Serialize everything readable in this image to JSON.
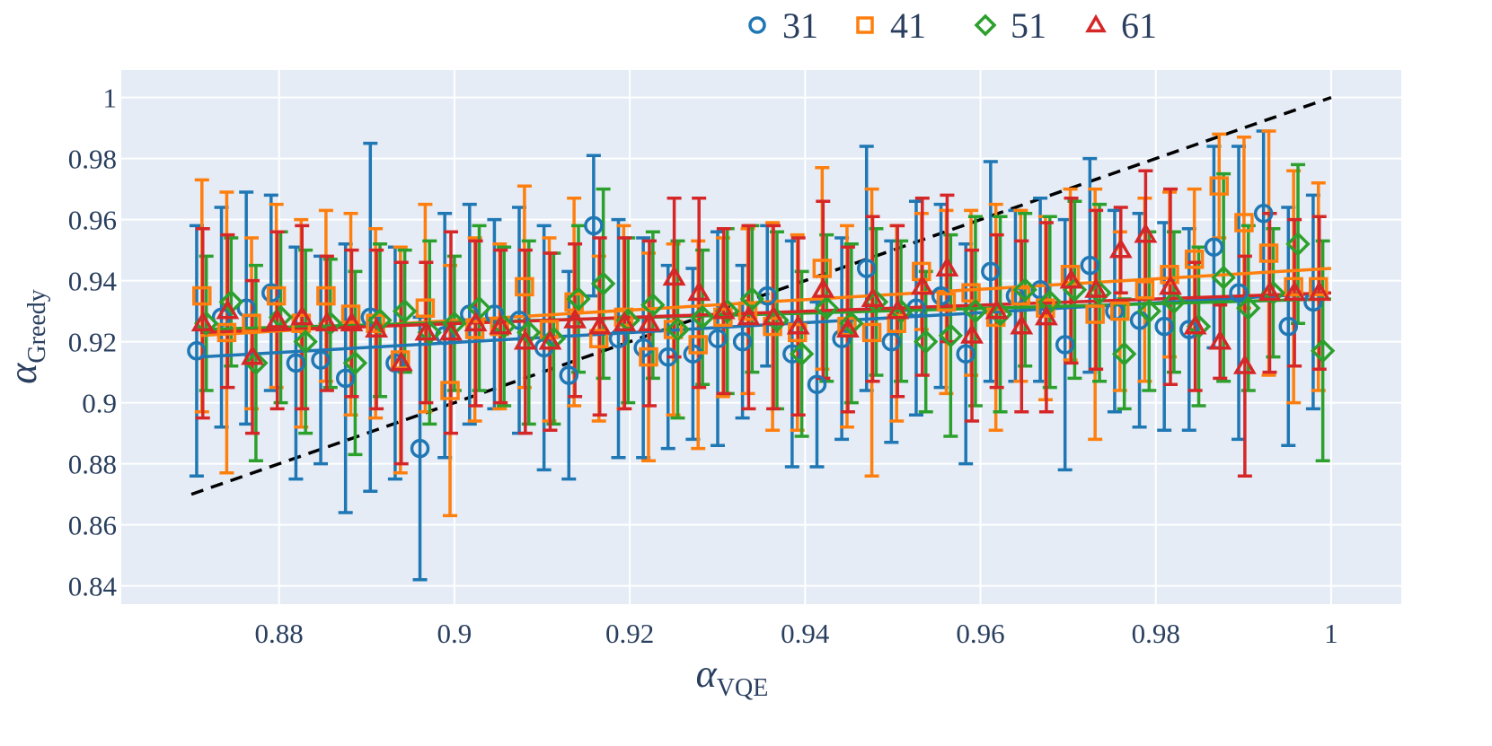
{
  "chart_data": {
    "type": "scatter",
    "title": "",
    "xlabel": {
      "symbol": "α",
      "sub": "VQE"
    },
    "ylabel": {
      "symbol": "α",
      "sub": "Greedy"
    },
    "xlim": [
      0.862,
      1.008
    ],
    "ylim": [
      0.834,
      1.009
    ],
    "xticks": [
      0.88,
      0.9,
      0.92,
      0.94,
      0.96,
      0.98,
      1
    ],
    "xtick_labels": [
      "0.88",
      "0.9",
      "0.92",
      "0.94",
      "0.96",
      "0.98",
      "1"
    ],
    "yticks": [
      0.84,
      0.86,
      0.88,
      0.9,
      0.92,
      0.94,
      0.96,
      0.98,
      1
    ],
    "ytick_labels": [
      "0.84",
      "0.86",
      "0.88",
      "0.9",
      "0.92",
      "0.94",
      "0.96",
      "0.98",
      "1"
    ],
    "grid": true,
    "background": "#e5ecf6",
    "legend_position": "top-right",
    "reference_line": {
      "style": "dashed",
      "color": "#000000",
      "x": [
        0.87,
        1
      ],
      "y": [
        0.87,
        1
      ]
    },
    "series": [
      {
        "name": "31",
        "color": "#1f77b4",
        "marker": "circle",
        "x_start": 0.8706,
        "x_step": 0.00283,
        "y": [
          0.917,
          0.928,
          0.931,
          0.936,
          0.913,
          0.914,
          0.908,
          0.928,
          0.913,
          0.885,
          0.922,
          0.929,
          0.929,
          0.927,
          0.918,
          0.909,
          0.958,
          0.921,
          0.918,
          0.915,
          0.916,
          0.921,
          0.92,
          0.935,
          0.916,
          0.906,
          0.921,
          0.944,
          0.92,
          0.931,
          0.935,
          0.916,
          0.943,
          0.935,
          0.937,
          0.919,
          0.945,
          0.93,
          0.927,
          0.925,
          0.924,
          0.951,
          0.936,
          0.962,
          0.925,
          0.933
        ],
        "err": [
          0.041,
          0.036,
          0.038,
          0.032,
          0.038,
          0.034,
          0.044,
          0.057,
          0.038,
          0.043,
          0.04,
          0.036,
          0.031,
          0.037,
          0.04,
          0.034,
          0.023,
          0.039,
          0.036,
          0.03,
          0.028,
          0.035,
          0.025,
          0.023,
          0.037,
          0.027,
          0.033,
          0.04,
          0.033,
          0.035,
          0.03,
          0.036,
          0.036,
          0.028,
          0.03,
          0.041,
          0.035,
          0.033,
          0.035,
          0.034,
          0.033,
          0.033,
          0.048,
          0.027,
          0.039,
          0.035
        ],
        "fit": {
          "x": [
            0.871,
            1.0
          ],
          "y": [
            0.915,
            0.936
          ]
        }
      },
      {
        "name": "41",
        "color": "#ff7f0e",
        "marker": "square",
        "x_start": 0.8712,
        "x_step": 0.00283,
        "y": [
          0.935,
          0.923,
          0.926,
          0.935,
          0.926,
          0.935,
          0.929,
          0.926,
          0.914,
          0.931,
          0.904,
          0.924,
          0.925,
          0.938,
          0.924,
          0.933,
          0.921,
          0.928,
          0.915,
          0.924,
          0.919,
          0.928,
          0.93,
          0.925,
          0.923,
          0.944,
          0.925,
          0.923,
          0.926,
          0.943,
          0.933,
          0.936,
          0.928,
          0.935,
          0.931,
          0.942,
          0.929,
          0.93,
          0.937,
          0.942,
          0.947,
          0.971,
          0.959,
          0.949,
          0.938,
          0.938
        ],
        "err": [
          0.038,
          0.046,
          0.028,
          0.03,
          0.034,
          0.028,
          0.033,
          0.031,
          0.037,
          0.034,
          0.041,
          0.03,
          0.027,
          0.033,
          0.03,
          0.034,
          0.027,
          0.03,
          0.034,
          0.028,
          0.034,
          0.026,
          0.027,
          0.034,
          0.032,
          0.033,
          0.033,
          0.047,
          0.032,
          0.019,
          0.03,
          0.027,
          0.037,
          0.028,
          0.03,
          0.028,
          0.041,
          0.026,
          0.03,
          0.027,
          0.023,
          0.017,
          0.028,
          0.04,
          0.038,
          0.034
        ],
        "fit": {
          "x": [
            0.871,
            1.0
          ],
          "y": [
            0.922,
            0.944
          ]
        }
      },
      {
        "name": "51",
        "color": "#2ca02c",
        "marker": "diamond",
        "x_start": 0.8717,
        "x_step": 0.00283,
        "y": [
          0.926,
          0.933,
          0.913,
          0.928,
          0.92,
          0.926,
          0.913,
          0.927,
          0.93,
          0.923,
          0.926,
          0.931,
          0.925,
          0.923,
          0.921,
          0.934,
          0.939,
          0.927,
          0.932,
          0.924,
          0.928,
          0.93,
          0.934,
          0.927,
          0.916,
          0.931,
          0.926,
          0.933,
          0.93,
          0.92,
          0.922,
          0.93,
          0.929,
          0.937,
          0.933,
          0.937,
          0.936,
          0.916,
          0.93,
          0.933,
          0.925,
          0.941,
          0.931,
          0.936,
          0.952,
          0.917
        ],
        "err": [
          0.022,
          0.021,
          0.032,
          0.028,
          0.03,
          0.021,
          0.03,
          0.025,
          0.02,
          0.03,
          0.022,
          0.027,
          0.026,
          0.03,
          0.028,
          0.024,
          0.031,
          0.027,
          0.024,
          0.029,
          0.022,
          0.027,
          0.024,
          0.029,
          0.027,
          0.024,
          0.026,
          0.024,
          0.023,
          0.023,
          0.033,
          0.031,
          0.032,
          0.025,
          0.028,
          0.029,
          0.029,
          0.018,
          0.026,
          0.023,
          0.026,
          0.034,
          0.027,
          0.021,
          0.026,
          0.036
        ],
        "fit": {
          "x": [
            0.871,
            1.0
          ],
          "y": [
            0.924,
            0.934
          ]
        }
      },
      {
        "name": "61",
        "color": "#d62728",
        "marker": "triangle-up",
        "x_start": 0.8713,
        "x_step": 0.00283,
        "y": [
          0.926,
          0.93,
          0.915,
          0.927,
          0.928,
          0.926,
          0.926,
          0.924,
          0.913,
          0.923,
          0.923,
          0.926,
          0.925,
          0.92,
          0.92,
          0.927,
          0.925,
          0.926,
          0.926,
          0.941,
          0.936,
          0.93,
          0.928,
          0.928,
          0.925,
          0.937,
          0.924,
          0.934,
          0.93,
          0.938,
          0.944,
          0.922,
          0.93,
          0.925,
          0.928,
          0.94,
          0.937,
          0.95,
          0.955,
          0.938,
          0.925,
          0.92,
          0.912,
          0.936,
          0.936,
          0.936
        ],
        "err": [
          0.031,
          0.025,
          0.025,
          0.029,
          0.03,
          0.022,
          0.024,
          0.026,
          0.033,
          0.023,
          0.033,
          0.027,
          0.025,
          0.03,
          0.029,
          0.025,
          0.029,
          0.028,
          0.027,
          0.026,
          0.031,
          0.027,
          0.03,
          0.03,
          0.029,
          0.029,
          0.027,
          0.027,
          0.028,
          0.029,
          0.024,
          0.028,
          0.025,
          0.028,
          0.031,
          0.027,
          0.026,
          0.014,
          0.021,
          0.032,
          0.021,
          0.012,
          0.036,
          0.026,
          0.024,
          0.025
        ],
        "fit": {
          "x": [
            0.871,
            1.0
          ],
          "y": [
            0.923,
            0.936
          ]
        }
      }
    ]
  }
}
